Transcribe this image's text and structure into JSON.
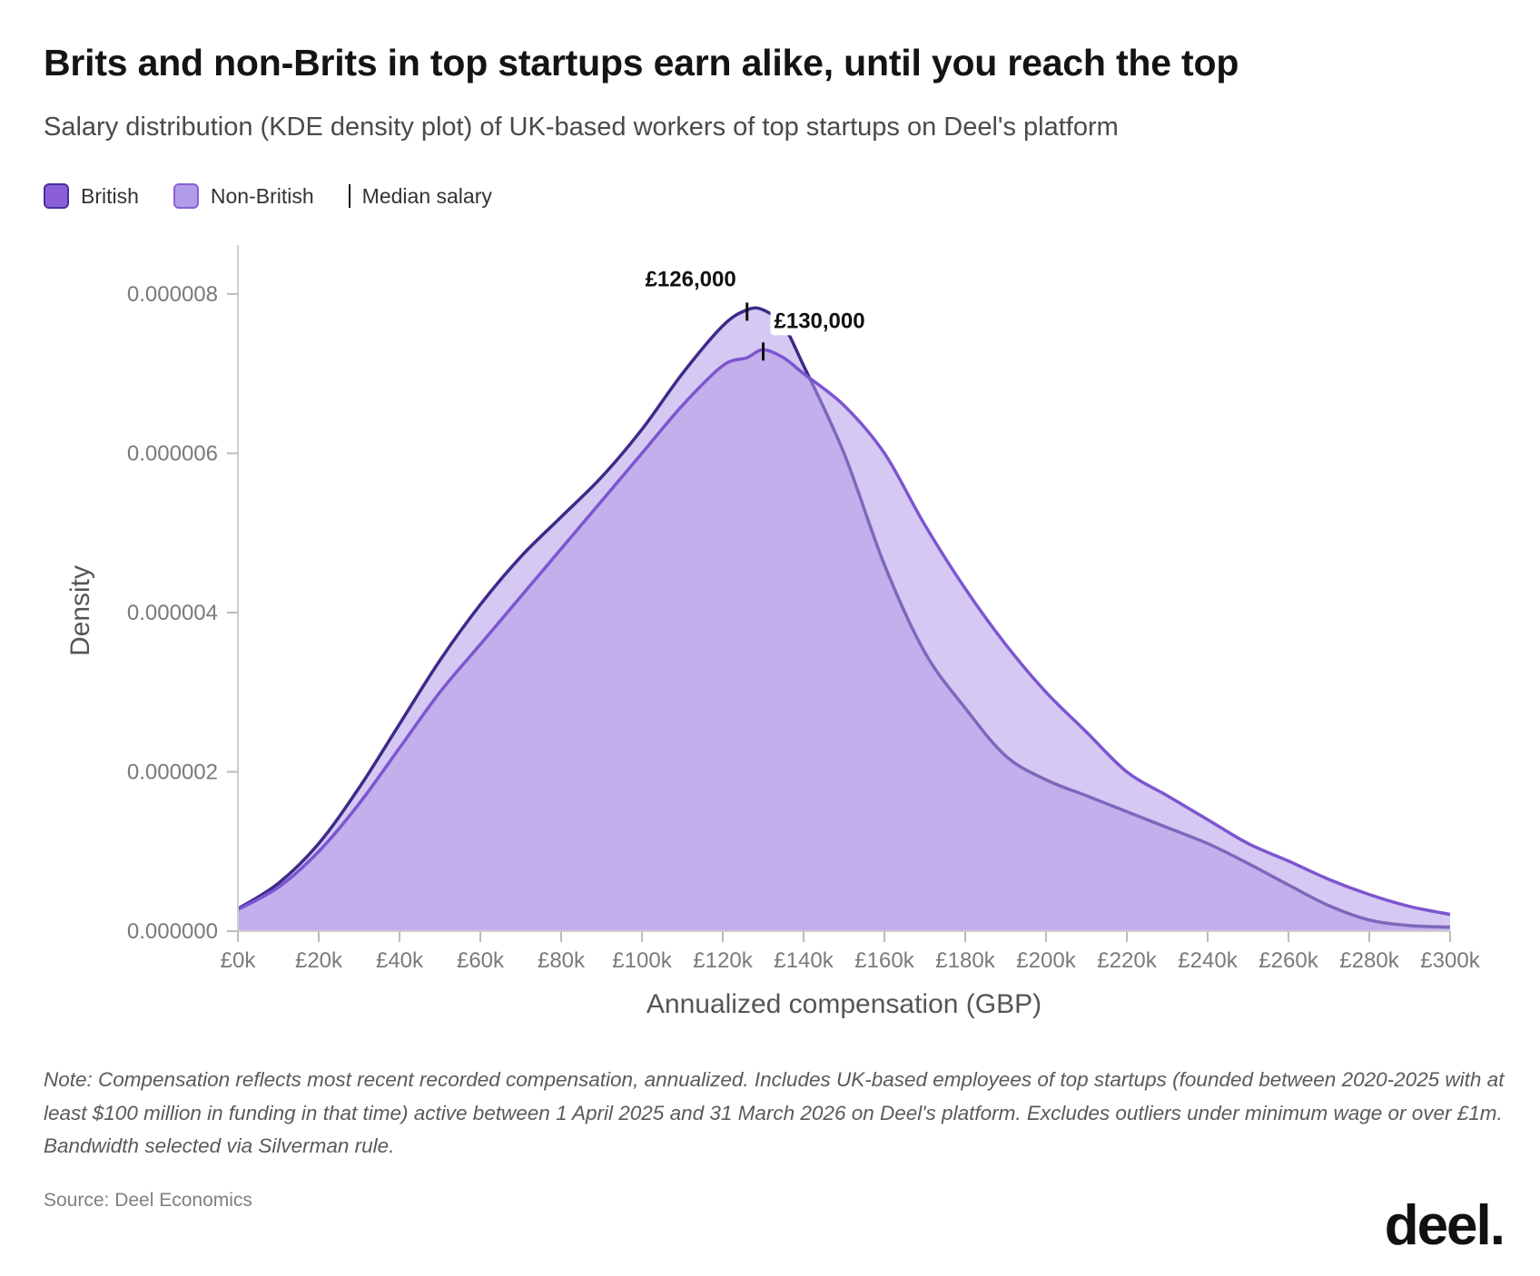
{
  "header": {
    "title": "Brits and non-Brits in top startups earn alike, until you reach the top",
    "subtitle": "Salary distribution (KDE density plot) of UK-based workers of top startups on Deel's platform"
  },
  "legend": {
    "items": [
      {
        "label": "British",
        "fill": "#8a5fd6",
        "stroke": "#4b2fa0"
      },
      {
        "label": "Non-British",
        "fill": "#b29be8",
        "stroke": "#8a5fd6"
      },
      {
        "label": "Median salary",
        "marker": "tick"
      }
    ]
  },
  "chart_data": {
    "type": "area",
    "xlabel": "Annualized compensation (GBP)",
    "ylabel": "Density",
    "xlim": [
      0,
      300000
    ],
    "ylim": [
      0,
      8.5e-06
    ],
    "x_ticks": [
      0,
      20000,
      40000,
      60000,
      80000,
      100000,
      120000,
      140000,
      160000,
      180000,
      200000,
      220000,
      240000,
      260000,
      280000,
      300000
    ],
    "x_tick_labels": [
      "£0k",
      "£20k",
      "£40k",
      "£60k",
      "£80k",
      "£100k",
      "£120k",
      "£140k",
      "£160k",
      "£180k",
      "£200k",
      "£220k",
      "£240k",
      "£260k",
      "£280k",
      "£300k"
    ],
    "y_ticks": [
      0,
      2e-06,
      4e-06,
      6e-06,
      8e-06
    ],
    "y_tick_labels": [
      "0.000000",
      "0.000002",
      "0.000004",
      "0.000006",
      "0.000008"
    ],
    "grid": false,
    "x": [
      0,
      10000,
      20000,
      30000,
      40000,
      50000,
      60000,
      70000,
      80000,
      90000,
      100000,
      110000,
      120000,
      126000,
      130000,
      135000,
      140000,
      150000,
      160000,
      170000,
      180000,
      190000,
      200000,
      210000,
      220000,
      230000,
      240000,
      250000,
      260000,
      270000,
      280000,
      290000,
      300000
    ],
    "series": [
      {
        "name": "British",
        "fill": "#b29be8",
        "stroke": "#3d2a8a",
        "median": 126000,
        "median_label": "£126,000",
        "values": [
          2.8e-07,
          6e-07,
          1.1e-06,
          1.8e-06,
          2.6e-06,
          3.4e-06,
          4.1e-06,
          4.7e-06,
          5.2e-06,
          5.7e-06,
          6.3e-06,
          7e-06,
          7.6e-06,
          7.8e-06,
          7.8e-06,
          7.6e-06,
          7.1e-06,
          6e-06,
          4.6e-06,
          3.5e-06,
          2.8e-06,
          2.2e-06,
          1.9e-06,
          1.7e-06,
          1.5e-06,
          1.3e-06,
          1.1e-06,
          8.5e-07,
          5.8e-07,
          3.2e-07,
          1.4e-07,
          7e-08,
          5e-08
        ]
      },
      {
        "name": "Non-British",
        "fill": "#b29be8",
        "stroke": "#7d55d0",
        "median": 130000,
        "median_label": "£130,000",
        "values": [
          2.7e-07,
          5.5e-07,
          1e-06,
          1.6e-06,
          2.3e-06,
          3e-06,
          3.6e-06,
          4.2e-06,
          4.8e-06,
          5.4e-06,
          6e-06,
          6.6e-06,
          7.1e-06,
          7.2e-06,
          7.3e-06,
          7.2e-06,
          7e-06,
          6.6e-06,
          6e-06,
          5.1e-06,
          4.3e-06,
          3.6e-06,
          3e-06,
          2.5e-06,
          2e-06,
          1.7e-06,
          1.4e-06,
          1.1e-06,
          8.8e-07,
          6.5e-07,
          4.6e-07,
          3.1e-07,
          2.1e-07
        ]
      }
    ]
  },
  "footer": {
    "note": "Note: Compensation reflects most recent recorded compensation, annualized. Includes UK-based employees of top startups (founded between 2020-2025 with at least $100 million in funding in that time) active between 1 April 2025 and 31 March 2026 on Deel's platform. Excludes outliers under minimum wage or over £1m. Bandwidth selected via Silverman rule.",
    "source": "Source: Deel Economics",
    "logo_text": "deel."
  }
}
